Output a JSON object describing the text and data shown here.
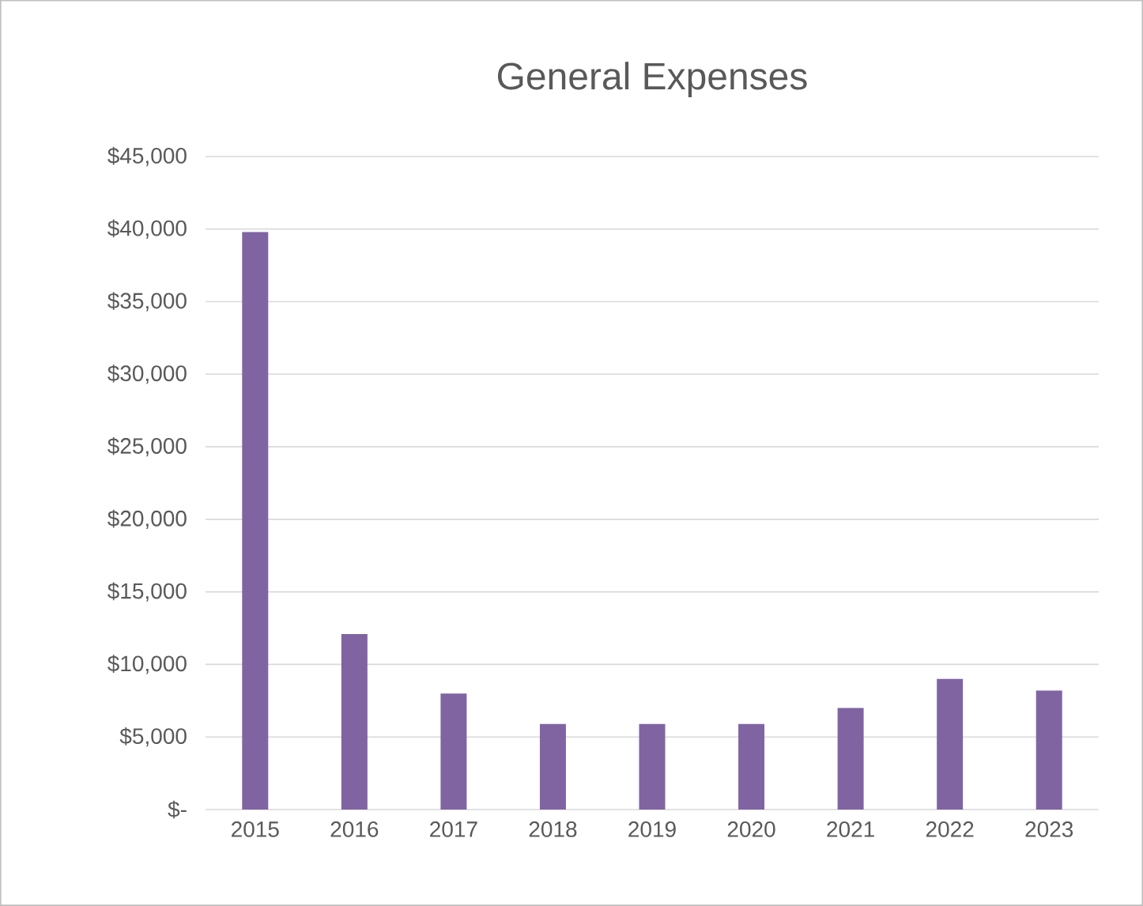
{
  "chart_data": {
    "type": "bar",
    "title": "General Expenses",
    "categories": [
      "2015",
      "2016",
      "2017",
      "2018",
      "2019",
      "2020",
      "2021",
      "2022",
      "2023"
    ],
    "values": [
      39800,
      12100,
      8000,
      5900,
      5900,
      5900,
      7000,
      9000,
      8200
    ],
    "color": "#8064a2",
    "ylim": [
      0,
      45000
    ],
    "yticks": [
      {
        "value": 0,
        "label": "$-"
      },
      {
        "value": 5000,
        "label": "$5,000"
      },
      {
        "value": 10000,
        "label": "$10,000"
      },
      {
        "value": 15000,
        "label": "$15,000"
      },
      {
        "value": 20000,
        "label": "$20,000"
      },
      {
        "value": 25000,
        "label": "$25,000"
      },
      {
        "value": 30000,
        "label": "$30,000"
      },
      {
        "value": 35000,
        "label": "$35,000"
      },
      {
        "value": 40000,
        "label": "$40,000"
      },
      {
        "value": 45000,
        "label": "$45,000"
      }
    ],
    "grid": "y"
  }
}
